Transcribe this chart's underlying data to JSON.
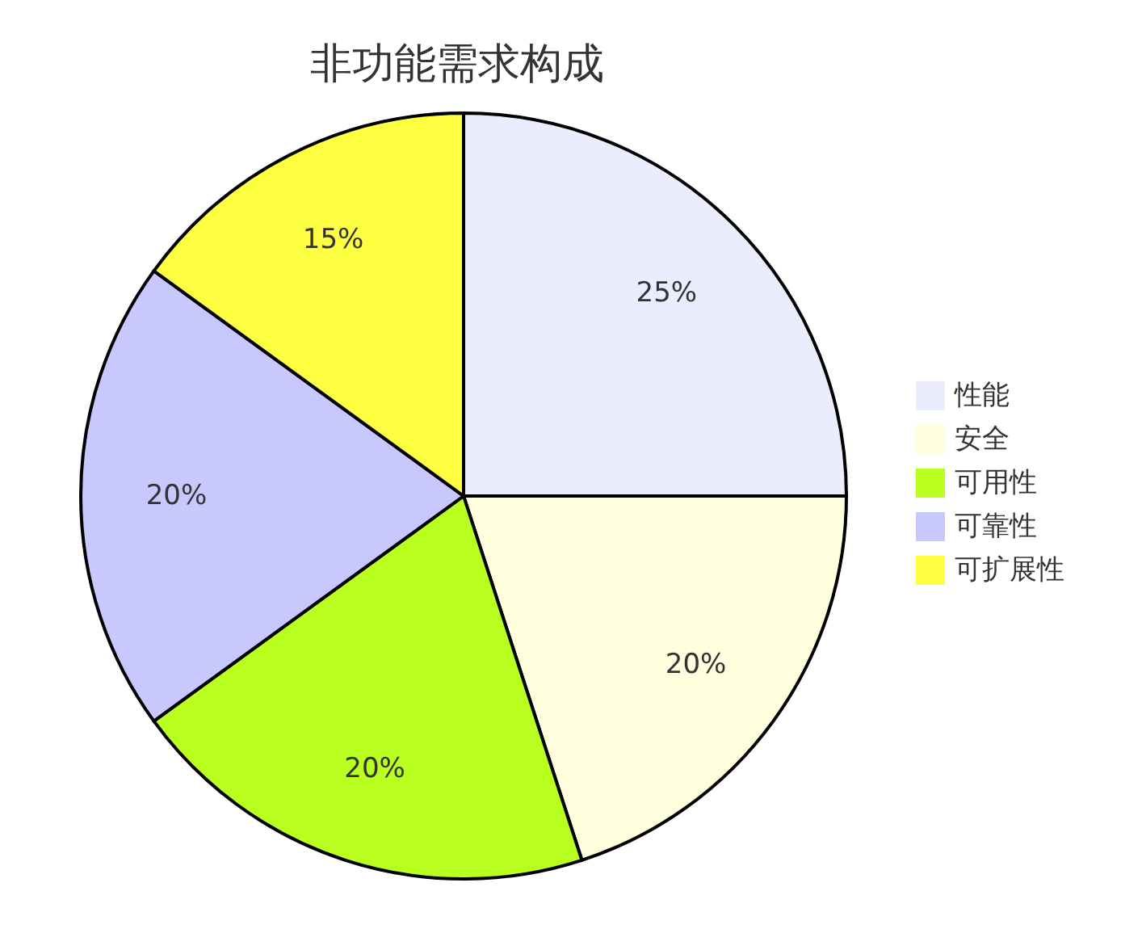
{
  "chart_data": {
    "type": "pie",
    "title": "非功能需求构成",
    "categories": [
      "性能",
      "安全",
      "可用性",
      "可靠性",
      "可扩展性"
    ],
    "values": [
      25,
      20,
      20,
      20,
      15
    ],
    "colors": [
      "#ececff",
      "#ffffde",
      "#b9ff20",
      "#c8c8ff",
      "#ffff42"
    ],
    "value_labels": [
      "25%",
      "20%",
      "20%",
      "20%",
      "15%"
    ],
    "legend": "right"
  }
}
